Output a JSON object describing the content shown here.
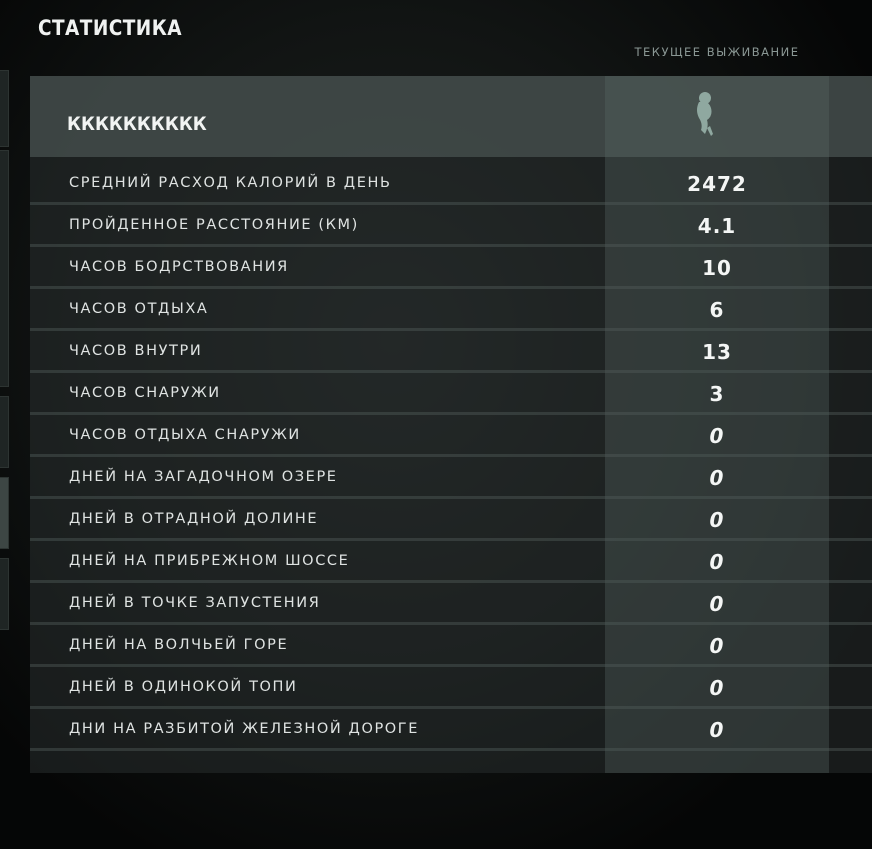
{
  "page": {
    "title": "СТАТИСТИКА"
  },
  "column": {
    "header": "ТЕКУЩЕЕ ВЫЖИВАНИЕ",
    "icon": "survivor-figure-icon"
  },
  "profile": {
    "name": "КККККККККК"
  },
  "stats": [
    {
      "label": "СРЕДНИЙ РАСХОД КАЛОРИЙ В ДЕНЬ",
      "value": "2472"
    },
    {
      "label": "ПРОЙДЕННОЕ РАССТОЯНИЕ (КМ)",
      "value": "4.1"
    },
    {
      "label": "ЧАСОВ БОДРСТВОВАНИЯ",
      "value": "10"
    },
    {
      "label": "ЧАСОВ ОТДЫХА",
      "value": "6"
    },
    {
      "label": "ЧАСОВ ВНУТРИ",
      "value": "13"
    },
    {
      "label": "ЧАСОВ СНАРУЖИ",
      "value": "3"
    },
    {
      "label": "ЧАСОВ ОТДЫХА СНАРУЖИ",
      "value": "0"
    },
    {
      "label": "ДНЕЙ НА ЗАГАДОЧНОМ ОЗЕРЕ",
      "value": "0"
    },
    {
      "label": "ДНЕЙ В ОТРАДНОЙ ДОЛИНЕ",
      "value": "0"
    },
    {
      "label": "ДНЕЙ НА ПРИБРЕЖНОМ ШОССЕ",
      "value": "0"
    },
    {
      "label": "ДНЕЙ В ТОЧКЕ ЗАПУСТЕНИЯ",
      "value": "0"
    },
    {
      "label": "ДНЕЙ НА ВОЛЧЬЕЙ ГОРЕ",
      "value": "0"
    },
    {
      "label": "ДНЕЙ В ОДИНОКОЙ ТОПИ",
      "value": "0"
    },
    {
      "label": "ДНИ НА РАЗБИТОЙ ЖЕЛЕЗНОЙ ДОРОГЕ",
      "value": "0"
    }
  ],
  "colors": {
    "accent_icon": "#8fa8a0"
  }
}
